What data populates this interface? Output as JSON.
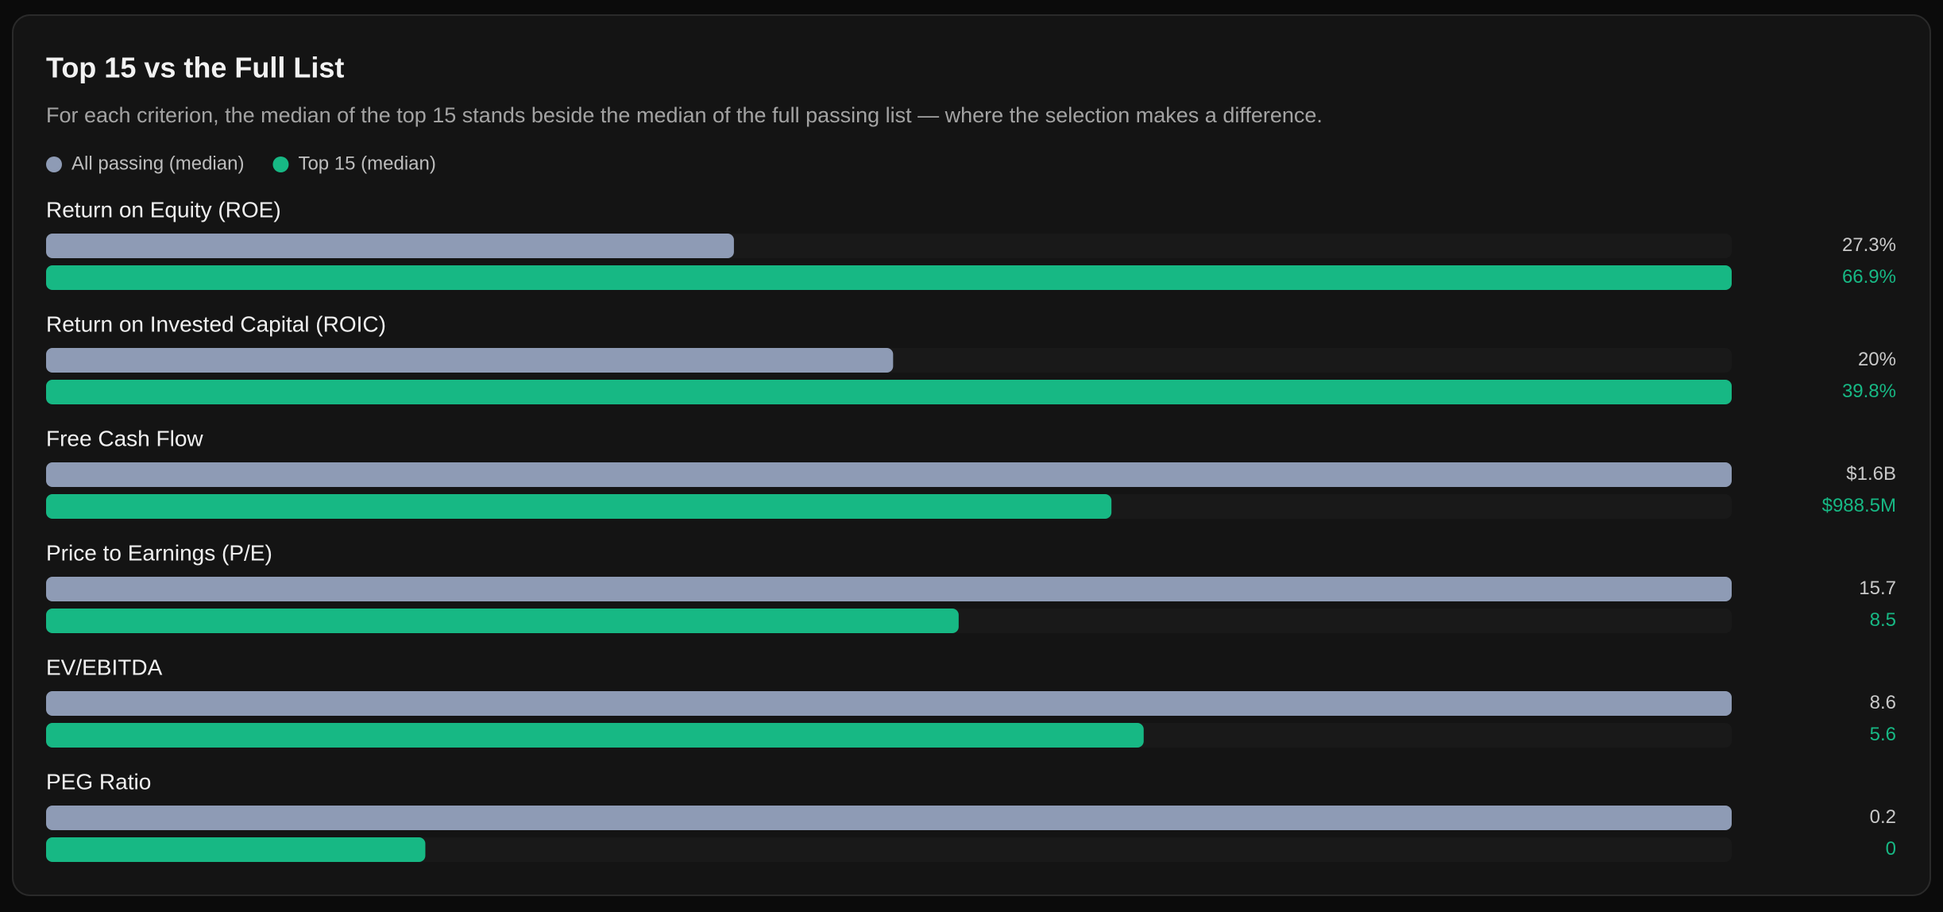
{
  "chart_data": {
    "type": "bar",
    "title": "Top 15 vs the Full List",
    "subtitle": "For each criterion, the median of the top 15 stands beside the median of the full passing list — where the selection makes a difference.",
    "categories": [
      "Return on Equity (ROE)",
      "Return on Invested Capital (ROIC)",
      "Free Cash Flow",
      "Price to Earnings (P/E)",
      "EV/EBITDA",
      "PEG Ratio"
    ],
    "series": [
      {
        "name": "All passing (median)",
        "color": "#8e9bb5",
        "values": [
          27.3,
          20,
          1564000000,
          15.7,
          8.6,
          0.2
        ],
        "value_labels": [
          "27.3%",
          "20%",
          "$1.6B",
          "15.7",
          "8.6",
          "0.2"
        ]
      },
      {
        "name": "Top 15 (median)",
        "color": "#17b884",
        "values": [
          66.9,
          39.8,
          988500000,
          8.5,
          5.6,
          0.045
        ],
        "value_labels": [
          "66.9%",
          "39.8%",
          "$988.5M",
          "8.5",
          "5.6",
          "0"
        ]
      }
    ],
    "legend": "top-left"
  }
}
